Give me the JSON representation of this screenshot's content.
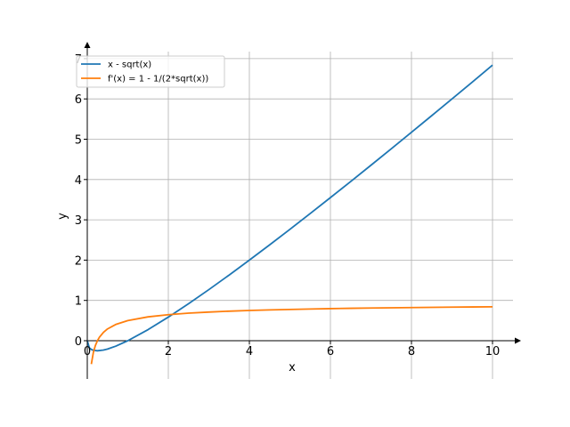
{
  "chart_data": {
    "type": "line",
    "title": "",
    "xlabel": "x",
    "ylabel": "y",
    "xlim": [
      0,
      10.5
    ],
    "ylim": [
      -0.95,
      7.3
    ],
    "xticks": [
      0,
      2,
      4,
      6,
      8,
      10
    ],
    "yticks": [
      0,
      1,
      2,
      3,
      4,
      5,
      6,
      7
    ],
    "xtick_labels": [
      "0",
      "2",
      "4",
      "6",
      "8",
      "10"
    ],
    "ytick_labels": [
      "0",
      "1",
      "2",
      "3",
      "4",
      "5",
      "6",
      "7"
    ],
    "grid": true,
    "legend_position": "top-left",
    "series": [
      {
        "name": "x - sqrt(x)",
        "color": "#1f77b4",
        "x": [
          0,
          0.05,
          0.1,
          0.15,
          0.25,
          0.4,
          0.5,
          0.7,
          1,
          1.5,
          2,
          2.5,
          3,
          3.5,
          4,
          4.5,
          5,
          5.5,
          6,
          6.5,
          7,
          7.5,
          8,
          8.5,
          9,
          9.5,
          10
        ],
        "y": [
          0,
          -0.174,
          -0.216,
          -0.237,
          -0.25,
          -0.232,
          -0.207,
          -0.137,
          0,
          0.275,
          0.586,
          0.919,
          1.268,
          1.629,
          2,
          2.379,
          2.764,
          3.155,
          3.551,
          3.95,
          4.354,
          4.761,
          5.172,
          5.585,
          6,
          6.418,
          6.838
        ]
      },
      {
        "name": "f'(x) = 1 - 1/(2*sqrt(x))",
        "color": "#ff7f0e",
        "x": [
          0.1,
          0.15,
          0.2,
          0.25,
          0.3,
          0.4,
          0.5,
          0.7,
          1,
          1.5,
          2,
          2.5,
          3,
          3.5,
          4,
          4.5,
          5,
          5.5,
          6,
          6.5,
          7,
          7.5,
          8,
          8.5,
          9,
          9.5,
          10
        ],
        "y": [
          -0.581,
          -0.291,
          -0.118,
          0,
          0.087,
          0.209,
          0.293,
          0.402,
          0.5,
          0.592,
          0.646,
          0.684,
          0.711,
          0.733,
          0.75,
          0.764,
          0.776,
          0.787,
          0.796,
          0.804,
          0.811,
          0.817,
          0.823,
          0.828,
          0.833,
          0.838,
          0.842
        ]
      }
    ]
  }
}
